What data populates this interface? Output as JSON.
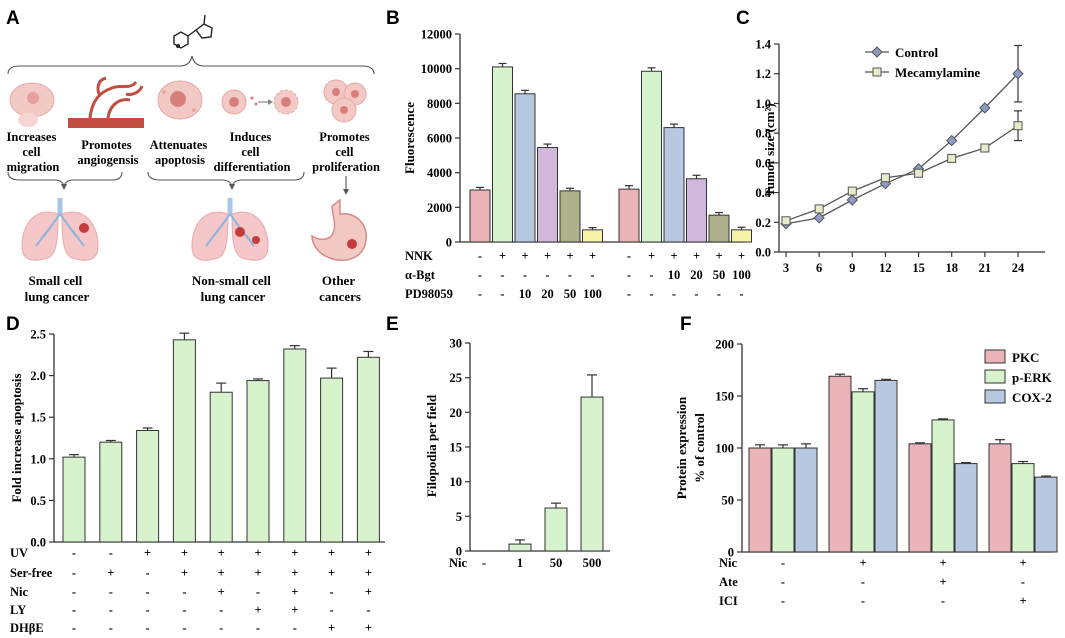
{
  "panel_labels": [
    "A",
    "B",
    "C",
    "D",
    "E",
    "F"
  ],
  "panel_a": {
    "effects": [
      {
        "lines": [
          "Increases",
          "cell",
          "migration"
        ]
      },
      {
        "lines": [
          "Promotes",
          "angiogensis"
        ]
      },
      {
        "lines": [
          "Attenuates",
          "apoptosis"
        ]
      },
      {
        "lines": [
          "Induces",
          "cell",
          "differentiation"
        ]
      },
      {
        "lines": [
          "Promotes",
          "cell",
          "proliferation"
        ]
      }
    ],
    "diseases": [
      {
        "lines": [
          "Small cell",
          "lung cancer"
        ]
      },
      {
        "lines": [
          "Non-small cell",
          "lung cancer"
        ]
      },
      {
        "lines": [
          "Other",
          "cancers"
        ]
      }
    ]
  },
  "chart_data": [
    {
      "panel": "B",
      "type": "bar",
      "ylabel": "Fluorescence",
      "ylim": [
        0,
        12000
      ],
      "yticks": [
        0,
        2000,
        4000,
        6000,
        8000,
        10000,
        12000
      ],
      "bars": [
        {
          "value": 3000,
          "err": 150,
          "color": "#eab3b8"
        },
        {
          "value": 10100,
          "err": 200,
          "color": "#d6f3ce"
        },
        {
          "value": 8550,
          "err": 200,
          "color": "#b8c8e0"
        },
        {
          "value": 5450,
          "err": 200,
          "color": "#d1b7dc"
        },
        {
          "value": 2950,
          "err": 150,
          "color": "#afb08c"
        },
        {
          "value": 700,
          "err": 130,
          "color": "#f6f2a8"
        },
        {
          "value": 3050,
          "err": 200,
          "color": "#eab3b8"
        },
        {
          "value": 9850,
          "err": 200,
          "color": "#d6f3ce"
        },
        {
          "value": 6600,
          "err": 200,
          "color": "#b8c8e0"
        },
        {
          "value": 3650,
          "err": 200,
          "color": "#d1b7dc"
        },
        {
          "value": 1550,
          "err": 150,
          "color": "#afb08c"
        },
        {
          "value": 700,
          "err": 150,
          "color": "#f6f2a8"
        }
      ],
      "conditions": [
        {
          "label": "NNK",
          "values": [
            "-",
            "+",
            "+",
            "+",
            "+",
            "+",
            "-",
            "+",
            "+",
            "+",
            "+",
            "+"
          ]
        },
        {
          "label": "α-Bgt",
          "values": [
            "-",
            "-",
            "-",
            "-",
            "-",
            "-",
            "-",
            "-",
            "10",
            "20",
            "50",
            "100"
          ]
        },
        {
          "label": "PD98059",
          "values": [
            "-",
            "-",
            "10",
            "20",
            "50",
            "100",
            "-",
            "-",
            "-",
            "-",
            "-",
            "-"
          ]
        }
      ]
    },
    {
      "panel": "C",
      "type": "line",
      "ylabel": "Tumor size (cm²)",
      "xlim": [
        2,
        25
      ],
      "ylim": [
        0,
        1.4
      ],
      "xticks": [
        3,
        6,
        9,
        12,
        15,
        18,
        21,
        24
      ],
      "yticks": [
        "0.0",
        "0.2",
        "0.4",
        "0.6",
        "0.8",
        "1.0",
        "1.2",
        "1.4"
      ],
      "series": [
        {
          "name": "Control",
          "marker": "diamond",
          "color": "#8b9dc3",
          "x": [
            3,
            6,
            9,
            12,
            15,
            18,
            21,
            24
          ],
          "y": [
            0.19,
            0.23,
            0.35,
            0.46,
            0.56,
            0.75,
            0.97,
            1.2
          ],
          "err_last": 0.19
        },
        {
          "name": "Mecamylamine",
          "marker": "square",
          "color": "#e6eccb",
          "x": [
            3,
            6,
            9,
            12,
            15,
            18,
            21,
            24
          ],
          "y": [
            0.21,
            0.29,
            0.41,
            0.5,
            0.53,
            0.63,
            0.7,
            0.85
          ],
          "err_last": 0.1
        }
      ]
    },
    {
      "panel": "D",
      "type": "bar",
      "ylabel": "Fold increase apoptosis",
      "ylim": [
        0,
        2.5
      ],
      "yticks": [
        "0.0",
        "0.5",
        "1.0",
        "1.5",
        "2.0",
        "2.5"
      ],
      "bars": [
        {
          "value": 1.02,
          "err": 0.03,
          "color": "#d6f3ce"
        },
        {
          "value": 1.2,
          "err": 0.02,
          "color": "#d6f3ce"
        },
        {
          "value": 1.34,
          "err": 0.03,
          "color": "#d6f3ce"
        },
        {
          "value": 2.43,
          "err": 0.08,
          "color": "#d6f3ce"
        },
        {
          "value": 1.8,
          "err": 0.11,
          "color": "#d6f3ce"
        },
        {
          "value": 1.94,
          "err": 0.02,
          "color": "#d6f3ce"
        },
        {
          "value": 2.32,
          "err": 0.04,
          "color": "#d6f3ce"
        },
        {
          "value": 1.97,
          "err": 0.12,
          "color": "#d6f3ce"
        },
        {
          "value": 2.22,
          "err": 0.07,
          "color": "#d6f3ce"
        }
      ],
      "conditions": [
        {
          "label": "UV",
          "values": [
            "-",
            "-",
            "+",
            "+",
            "+",
            "+",
            "+",
            "+",
            "+"
          ]
        },
        {
          "label": "Ser-free",
          "values": [
            "-",
            "+",
            "-",
            "+",
            "+",
            "+",
            "+",
            "+",
            "+"
          ]
        },
        {
          "label": "Nic",
          "values": [
            "-",
            "-",
            "-",
            "-",
            "+",
            "-",
            "+",
            "-",
            "+"
          ]
        },
        {
          "label": "LY",
          "values": [
            "-",
            "-",
            "-",
            "-",
            "-",
            "+",
            "+",
            "-",
            "-"
          ]
        },
        {
          "label": "DHβE",
          "values": [
            "-",
            "-",
            "-",
            "-",
            "-",
            "-",
            "-",
            "+",
            "+"
          ]
        }
      ]
    },
    {
      "panel": "E",
      "type": "bar",
      "ylabel": "Filopodia per field",
      "ylim": [
        0,
        30
      ],
      "yticks": [
        "0",
        "5",
        "10",
        "15",
        "20",
        "25",
        "30"
      ],
      "bars": [
        {
          "value": 0,
          "err": 0,
          "color": "#d6f3ce"
        },
        {
          "value": 1,
          "err": 0.6,
          "color": "#d6f3ce"
        },
        {
          "value": 6.2,
          "err": 0.7,
          "color": "#d6f3ce"
        },
        {
          "value": 22.2,
          "err": 3.2,
          "color": "#d6f3ce"
        }
      ],
      "conditions": [
        {
          "label": "Nic",
          "values": [
            "-",
            "1",
            "50",
            "500"
          ]
        }
      ]
    },
    {
      "panel": "F",
      "type": "bar",
      "ylabel_lines": [
        "Protein expression",
        "% of control"
      ],
      "ylim": [
        0,
        200
      ],
      "yticks": [
        "0",
        "50",
        "100",
        "150",
        "200"
      ],
      "series": [
        {
          "name": "PKC",
          "color": "#eab3b8",
          "values": [
            100,
            169,
            104,
            104
          ],
          "err": [
            3,
            2,
            1,
            4
          ]
        },
        {
          "name": "p-ERK",
          "color": "#d6f3ce",
          "values": [
            100,
            154,
            127,
            85
          ],
          "err": [
            3,
            3,
            1,
            2
          ]
        },
        {
          "name": "COX-2",
          "color": "#b8c8e0",
          "values": [
            100,
            165,
            85,
            72
          ],
          "err": [
            4,
            1,
            1,
            1
          ]
        }
      ],
      "conditions": [
        {
          "label": "Nic",
          "values": [
            "-",
            "+",
            "+",
            "+"
          ]
        },
        {
          "label": "Ate",
          "values": [
            "-",
            "-",
            "+",
            "-"
          ]
        },
        {
          "label": "ICI",
          "values": [
            "-",
            "-",
            "-",
            "+"
          ]
        }
      ]
    }
  ]
}
